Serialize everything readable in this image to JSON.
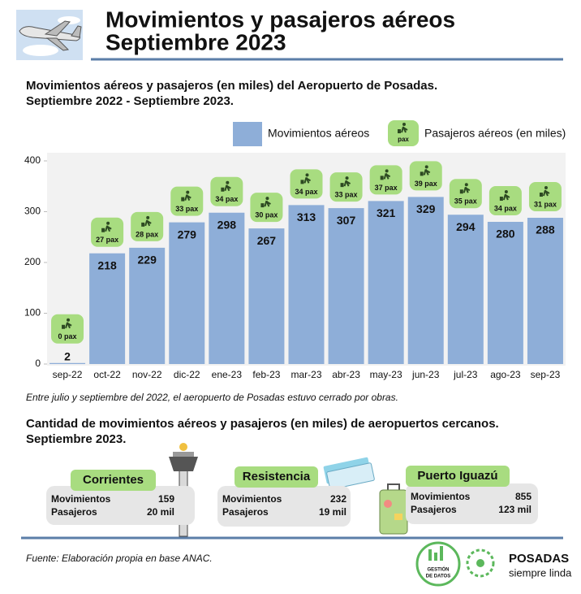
{
  "header": {
    "title": [
      "Movimientos y pasajeros aéreos",
      "Septiembre 2023"
    ]
  },
  "chart_data": {
    "type": "bar",
    "title": [
      "Movimientos aéreos y pasajeros (en miles) del Aeropuerto de Posadas.",
      "Septiembre 2022 - Septiembre 2023."
    ],
    "categories": [
      "sep-22",
      "oct-22",
      "nov-22",
      "dic-22",
      "ene-23",
      "feb-23",
      "mar-23",
      "abr-23",
      "may-23",
      "jun-23",
      "jul-23",
      "ago-23",
      "sep-23"
    ],
    "series": [
      {
        "name": "Movimientos aéreos",
        "color": "#8eaed8",
        "values": [
          2,
          218,
          229,
          279,
          298,
          267,
          313,
          307,
          321,
          329,
          294,
          280,
          288
        ]
      },
      {
        "name": "Pasajeros aéreos (en miles)",
        "color": "#a8dc80",
        "values": [
          0,
          27,
          28,
          33,
          34,
          30,
          34,
          33,
          37,
          39,
          35,
          34,
          31
        ],
        "value_labels": [
          "0 pax",
          "27 pax",
          "28 pax",
          "33 pax",
          "34 pax",
          "30 pax",
          "34 pax",
          "33 pax",
          "37 pax",
          "39 pax",
          "35 pax",
          "34 pax",
          "31 pax"
        ]
      }
    ],
    "legend_icon_text": "pax",
    "ylim": [
      0,
      400
    ],
    "yticks": [
      0,
      100,
      200,
      300,
      400
    ],
    "note": "Entre julio y septiembre del 2022, el aeropuerto de Posadas estuvo cerrado por obras."
  },
  "nearby": {
    "title": [
      "Cantidad de movimientos aéreos y pasajeros (en miles) de aeropuertos cercanos.",
      "Septiembre 2023."
    ],
    "airports": [
      {
        "name": "Corrientes",
        "rows": [
          {
            "label": "Movimientos",
            "value": "159"
          },
          {
            "label": "Pasajeros",
            "value": "20 mil"
          }
        ]
      },
      {
        "name": "Resistencia",
        "rows": [
          {
            "label": "Movimientos",
            "value": "232"
          },
          {
            "label": "Pasajeros",
            "value": "19 mil"
          }
        ]
      },
      {
        "name": "Puerto Iguazú",
        "rows": [
          {
            "label": "Movimientos",
            "value": "855"
          },
          {
            "label": "Pasajeros",
            "value": "123 mil"
          }
        ]
      }
    ]
  },
  "footer": {
    "source": "Fuente: Elaboración propia en base ANAC.",
    "logo1": [
      "GESTIÓN",
      "DE DATOS"
    ],
    "logo2": [
      "POSADAS",
      "siempre linda"
    ]
  }
}
